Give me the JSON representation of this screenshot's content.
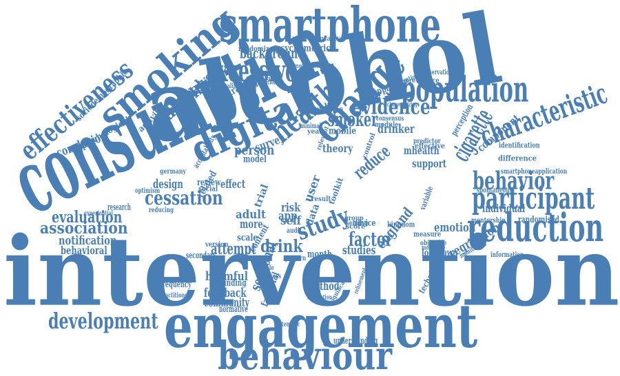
{
  "color": "#4a7fb5",
  "words": [
    {
      "text": "intervention"
    },
    {
      "text": "alcohol"
    },
    {
      "text": "consumption"
    },
    {
      "text": "engagement"
    },
    {
      "text": "smartphone"
    },
    {
      "text": "smoking"
    },
    {
      "text": "behaviour"
    },
    {
      "text": "change"
    },
    {
      "text": "digital"
    },
    {
      "text": "reduction"
    },
    {
      "text": "population"
    },
    {
      "text": "characteristic"
    },
    {
      "text": "participant"
    },
    {
      "text": "effectiveness"
    },
    {
      "text": "excessive"
    },
    {
      "text": "health"
    },
    {
      "text": "cigarette"
    },
    {
      "text": "behavior"
    },
    {
      "text": "development"
    },
    {
      "text": "study"
    },
    {
      "text": "evidence"
    },
    {
      "text": "cessation"
    },
    {
      "text": "association"
    },
    {
      "text": "smoker"
    },
    {
      "text": "evaluation"
    },
    {
      "text": "drinking"
    },
    {
      "text": "analysis"
    },
    {
      "text": "attempt"
    },
    {
      "text": "factor"
    },
    {
      "text": "drink"
    },
    {
      "text": "reduce"
    },
    {
      "text": "background"
    },
    {
      "text": "notification"
    },
    {
      "text": "person"
    },
    {
      "text": "behavioral"
    },
    {
      "text": "conclusion"
    },
    {
      "text": "design"
    },
    {
      "text": "sectional"
    },
    {
      "text": "england"
    },
    {
      "text": "regression"
    },
    {
      "text": "feedback"
    },
    {
      "text": "harmful"
    },
    {
      "text": "community"
    },
    {
      "text": "emotion"
    },
    {
      "text": "method"
    },
    {
      "text": "individual"
    },
    {
      "text": "component"
    },
    {
      "text": "drinker"
    },
    {
      "text": "survey"
    },
    {
      "text": "support"
    },
    {
      "text": "outcome"
    },
    {
      "text": "strategies"
    },
    {
      "text": "sociodemographic"
    },
    {
      "text": "psychological"
    },
    {
      "text": "activities"
    },
    {
      "text": "psychometric"
    },
    {
      "text": "randomized"
    },
    {
      "text": "representative"
    },
    {
      "text": "approach"
    },
    {
      "text": "perception"
    },
    {
      "text": "effect"
    },
    {
      "text": "adult"
    },
    {
      "text": "more"
    },
    {
      "text": "self"
    },
    {
      "text": "risk"
    },
    {
      "text": "app"
    },
    {
      "text": "user"
    },
    {
      "text": "data"
    },
    {
      "text": "mhealth"
    },
    {
      "text": "mobile"
    },
    {
      "text": "theory"
    },
    {
      "text": "model"
    },
    {
      "text": "frequency"
    },
    {
      "text": "lockdown"
    },
    {
      "text": "studies"
    },
    {
      "text": "month"
    },
    {
      "text": "factorial"
    },
    {
      "text": "technique"
    },
    {
      "text": "randomised"
    },
    {
      "text": "identification"
    },
    {
      "text": "smartphoneapplication"
    },
    {
      "text": "difference"
    },
    {
      "text": "spontaneous"
    },
    {
      "text": "mentorship"
    },
    {
      "text": "effective"
    },
    {
      "text": "predictor"
    },
    {
      "text": "understanding"
    },
    {
      "text": "finding"
    },
    {
      "text": "normative"
    },
    {
      "text": "systematic"
    },
    {
      "text": "secondary"
    },
    {
      "text": "research"
    },
    {
      "text": "version"
    },
    {
      "text": "review"
    },
    {
      "text": "social"
    },
    {
      "text": "advice"
    },
    {
      "text": "related"
    },
    {
      "text": "trial"
    },
    {
      "text": "scale"
    },
    {
      "text": "content"
    },
    {
      "text": "kingdom"
    },
    {
      "text": "measure"
    },
    {
      "text": "variable"
    },
    {
      "text": "prevalence"
    },
    {
      "text": "observational"
    },
    {
      "text": "information"
    },
    {
      "text": "result"
    },
    {
      "text": "score"
    },
    {
      "text": "group"
    },
    {
      "text": "setting"
    },
    {
      "text": "toolkit"
    },
    {
      "text": "control"
    },
    {
      "text": "consensus"
    },
    {
      "text": "module"
    },
    {
      "text": "minimal"
    },
    {
      "text": "year"
    },
    {
      "text": "relevant"
    },
    {
      "text": "acceptability"
    },
    {
      "text": "germany"
    },
    {
      "text": "reducing"
    },
    {
      "text": "optimism"
    },
    {
      "text": "experiential"
    },
    {
      "text": "practitioner"
    },
    {
      "text": "qualitative"
    },
    {
      "text": "potential"
    },
    {
      "text": "visualization"
    },
    {
      "text": "characterizing"
    },
    {
      "text": "demographic"
    },
    {
      "text": "substitution"
    },
    {
      "text": "audit"
    },
    {
      "text": "sample"
    },
    {
      "text": "success"
    },
    {
      "text": "pattern"
    },
    {
      "text": "motivation"
    },
    {
      "text": "significant"
    },
    {
      "text": "refinement"
    },
    {
      "text": "monitoring"
    },
    {
      "text": "objective"
    },
    {
      "text": "moderate"
    }
  ]
}
